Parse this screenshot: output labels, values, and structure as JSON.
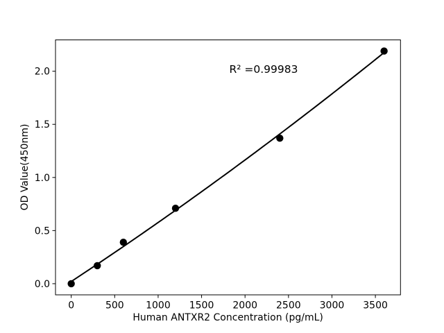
{
  "figure": {
    "background": "#ffffff"
  },
  "chart_data": {
    "type": "scatter",
    "title": "",
    "xlabel": "Human ANTXR2 Concentration (pg/mL)",
    "ylabel": "OD Value(450nm)",
    "annotation": "R² =0.99983",
    "x": [
      0,
      300,
      600,
      1200,
      2400,
      3600
    ],
    "y": [
      0.0,
      0.17,
      0.39,
      0.71,
      1.37,
      2.19
    ],
    "x_ticks": [
      0,
      500,
      1000,
      1500,
      2000,
      2500,
      3000,
      3500
    ],
    "x_tick_labels": [
      "0",
      "500",
      "1000",
      "1500",
      "2000",
      "2500",
      "3000",
      "3500"
    ],
    "y_ticks": [
      0.0,
      0.5,
      1.0,
      1.5,
      2.0
    ],
    "y_tick_labels": [
      "0.0",
      "0.5",
      "1.0",
      "1.5",
      "2.0"
    ],
    "xlim": [
      -181,
      3789
    ],
    "ylim": [
      -0.105,
      2.295
    ],
    "grid": false,
    "legend": null,
    "fit": {
      "type": "quadratic"
    },
    "marker_color": "#000000",
    "line_color": "#000000",
    "axis_color": "#000000"
  }
}
